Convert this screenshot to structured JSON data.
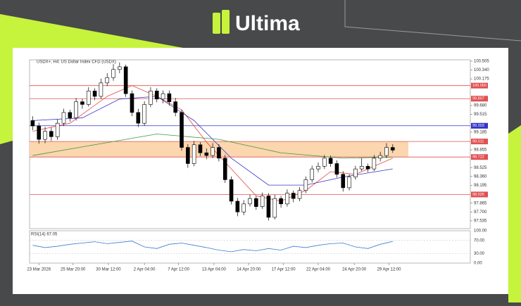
{
  "header": {
    "brand": "Ultima"
  },
  "chart_data": {
    "type": "candlestick",
    "title": "USDX+, H4:  US Dollar Index CFD (USDX)",
    "xlim": [
      0,
      71
    ],
    "xticks": [
      {
        "value": 1.5,
        "label": "23 Mar 2026"
      },
      {
        "value": 7,
        "label": "25 Mar 20:00"
      },
      {
        "value": 12.7,
        "label": "30 Mar 12:00"
      },
      {
        "value": 18.5,
        "label": "2 Apr 04:00"
      },
      {
        "value": 24,
        "label": "7 Apr 12:00"
      },
      {
        "value": 29.7,
        "label": "13 Apr 04:00"
      },
      {
        "value": 35.3,
        "label": "14 Apr 20:00"
      },
      {
        "value": 40.9,
        "label": "17 Apr 12:00"
      },
      {
        "value": 46.5,
        "label": "22 Apr 04:00"
      },
      {
        "value": 52.3,
        "label": "24 Apr 20:00"
      },
      {
        "value": 57.9,
        "label": "29 Apr 12:00"
      }
    ],
    "ylim": [
      97.39,
      100.53
    ],
    "yticks": [
      100.505,
      {
        "value": 100.34,
        "label": "100.340"
      },
      100.175,
      {
        "value": 99.68,
        "label": "99.680"
      },
      99.515,
      99.185,
      98.855,
      98.525,
      {
        "value": 98.36,
        "label": "98.360"
      },
      98.195,
      97.865,
      {
        "value": 97.7,
        "label": "97.700"
      },
      97.535
    ],
    "open": [
      99.4,
      99.3,
      99.05,
      99.2,
      99.1,
      99.35,
      99.55,
      99.45,
      99.75,
      99.7,
      99.95,
      99.85,
      100.1,
      100.2,
      100.35,
      100.4,
      99.9,
      99.55,
      99.35,
      99.7,
      99.95,
      99.8,
      99.9,
      99.75,
      99.55,
      98.9,
      98.6,
      98.95,
      98.8,
      98.75,
      98.9,
      98.7,
      98.3,
      97.9,
      97.7,
      97.85,
      97.95,
      97.8,
      98.0,
      97.6,
      97.95,
      97.85,
      98.05,
      97.95,
      98.1,
      98.3,
      98.5,
      98.55,
      98.7,
      98.6,
      98.4,
      98.15,
      98.35,
      98.5,
      98.55,
      98.5,
      98.7,
      98.75,
      98.9
    ],
    "high": [
      99.48,
      99.36,
      99.28,
      99.27,
      99.42,
      99.62,
      99.6,
      99.82,
      99.8,
      100.02,
      100.0,
      100.18,
      100.28,
      100.45,
      100.48,
      100.44,
      99.96,
      99.62,
      99.76,
      100.02,
      100.0,
      99.96,
      99.96,
      99.82,
      99.6,
      98.96,
      99.02,
      99.0,
      98.88,
      98.98,
      98.96,
      98.76,
      98.36,
      97.96,
      97.92,
      98.02,
      98.0,
      98.06,
      98.05,
      98.02,
      98.0,
      98.12,
      98.1,
      98.16,
      98.36,
      98.56,
      98.62,
      98.76,
      98.75,
      98.66,
      98.46,
      98.4,
      98.56,
      98.7,
      98.6,
      98.76,
      98.82,
      98.98,
      98.96
    ],
    "low": [
      99.22,
      98.97,
      98.98,
      99.02,
      99.04,
      99.3,
      99.38,
      99.4,
      99.62,
      99.66,
      99.78,
      99.8,
      100.04,
      100.14,
      100.28,
      99.84,
      99.48,
      99.28,
      99.3,
      99.65,
      99.74,
      99.72,
      99.68,
      99.48,
      98.84,
      98.52,
      98.55,
      98.74,
      98.68,
      98.7,
      98.64,
      98.24,
      97.84,
      97.62,
      97.64,
      97.8,
      97.74,
      97.76,
      97.54,
      97.56,
      97.78,
      97.8,
      97.88,
      97.9,
      98.05,
      98.25,
      98.44,
      98.5,
      98.54,
      98.34,
      98.08,
      98.1,
      98.3,
      98.46,
      98.44,
      98.46,
      98.64,
      98.7,
      98.8
    ],
    "close": [
      99.3,
      99.05,
      99.2,
      99.1,
      99.35,
      99.55,
      99.45,
      99.75,
      99.7,
      99.95,
      99.85,
      100.1,
      100.2,
      100.35,
      100.4,
      99.9,
      99.55,
      99.35,
      99.7,
      99.95,
      99.8,
      99.9,
      99.75,
      99.55,
      98.9,
      98.6,
      98.95,
      98.8,
      98.75,
      98.9,
      98.7,
      98.3,
      97.9,
      97.7,
      97.85,
      97.95,
      97.8,
      98.0,
      97.6,
      97.95,
      97.85,
      98.05,
      97.95,
      98.1,
      98.3,
      98.5,
      98.55,
      98.7,
      98.6,
      98.4,
      98.15,
      98.35,
      98.5,
      98.55,
      98.5,
      98.7,
      98.75,
      98.9,
      98.85
    ],
    "up_color": "#ffffff",
    "down_color": "#000000",
    "lines": [
      {
        "color": "#e8473f",
        "x": [
          0,
          6,
          12,
          16,
          20,
          24,
          28,
          32,
          36,
          40,
          44,
          48,
          52,
          58
        ],
        "values": [
          99.2,
          99.35,
          99.85,
          100.05,
          99.85,
          99.6,
          99.0,
          98.5,
          98.0,
          97.9,
          98.1,
          98.45,
          98.4,
          98.7
        ]
      },
      {
        "color": "#3434c8",
        "x": [
          0,
          8,
          14,
          20,
          26,
          32,
          38,
          44,
          50,
          58
        ],
        "values": [
          99.4,
          99.45,
          99.8,
          99.85,
          99.4,
          98.7,
          98.2,
          98.2,
          98.35,
          98.5
        ]
      },
      {
        "color": "#3a9a3a",
        "x": [
          0,
          10,
          20,
          30,
          40,
          50,
          58
        ],
        "values": [
          98.75,
          98.95,
          99.15,
          99.05,
          98.8,
          98.7,
          98.72
        ]
      }
    ],
    "levels": [
      {
        "value": 100.05,
        "label": "100.050",
        "color": "#e05050"
      },
      {
        "value": 99.807,
        "label": "99.807",
        "color": "#e05050"
      },
      {
        "value": 99.303,
        "label": "99.303",
        "color": "#3434c8"
      },
      {
        "value": 99.011,
        "label": "99.011",
        "color": "#e05050"
      },
      {
        "value": 98.722,
        "label": "98.722",
        "color": "#e05050"
      },
      {
        "value": 98.025,
        "label": "98.025",
        "color": "#e05050"
      }
    ],
    "zone": {
      "range": [
        98.722,
        99.011
      ],
      "color": "#fbd6ae"
    },
    "rsi": {
      "title": "RSI(14) 67.05",
      "color": "#3a7bd5",
      "ylim": [
        0,
        100
      ],
      "yticks": [
        {
          "value": 100,
          "label": "100.00"
        },
        {
          "value": 70,
          "label": "70.00"
        },
        {
          "value": 30,
          "label": "30.00"
        },
        {
          "value": 0,
          "label": "0.00"
        }
      ],
      "x": [
        0,
        2,
        4,
        6,
        8,
        10,
        12,
        14,
        16,
        18,
        20,
        22,
        24,
        26,
        28,
        30,
        32,
        34,
        36,
        38,
        40,
        42,
        44,
        46,
        48,
        50,
        52,
        54,
        56,
        58
      ],
      "values": [
        55,
        48,
        52,
        58,
        62,
        66,
        60,
        64,
        68,
        50,
        45,
        58,
        62,
        55,
        48,
        40,
        35,
        42,
        38,
        45,
        40,
        52,
        48,
        55,
        60,
        62,
        50,
        45,
        58,
        67
      ]
    }
  }
}
